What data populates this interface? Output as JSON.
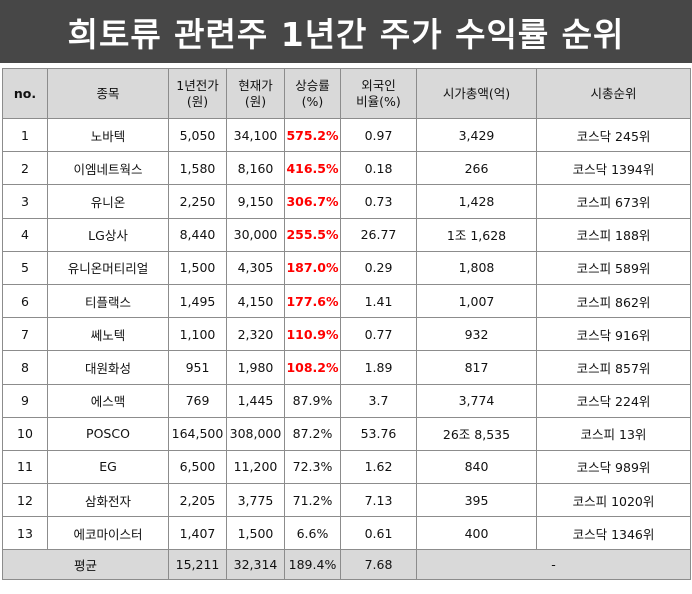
{
  "title": "희토류 관련주 1년간 주가 수익률 순위",
  "headers": {
    "no": "no.",
    "name": "종목",
    "price_1y_line1": "1년전가",
    "price_1y_line2": "(원)",
    "price_now_line1": "현재가",
    "price_now_line2": "(원)",
    "rise_line1": "상승률",
    "rise_line2": "(%)",
    "foreign_line1": "외국인",
    "foreign_line2": "비율(%)",
    "mktcap": "시가총액(억)",
    "rank": "시총순위"
  },
  "highlight_color": "#ff0000",
  "rows": [
    {
      "no": "1",
      "name": "노바텍",
      "p1y": "5,050",
      "pnow": "34,100",
      "rise": "575.2%",
      "foreign": "0.97",
      "mktcap": "3,429",
      "rank": "코스닥  245위",
      "hot": true
    },
    {
      "no": "2",
      "name": "이엠네트웍스",
      "p1y": "1,580",
      "pnow": "8,160",
      "rise": "416.5%",
      "foreign": "0.18",
      "mktcap": "266",
      "rank": "코스닥  1394위",
      "hot": true
    },
    {
      "no": "3",
      "name": "유니온",
      "p1y": "2,250",
      "pnow": "9,150",
      "rise": "306.7%",
      "foreign": "0.73",
      "mktcap": "1,428",
      "rank": "코스피  673위",
      "hot": true
    },
    {
      "no": "4",
      "name": "LG상사",
      "p1y": "8,440",
      "pnow": "30,000",
      "rise": "255.5%",
      "foreign": "26.77",
      "mktcap": "1조  1,628",
      "rank": "코스피  188위",
      "hot": true
    },
    {
      "no": "5",
      "name": "유니온머티리얼",
      "p1y": "1,500",
      "pnow": "4,305",
      "rise": "187.0%",
      "foreign": "0.29",
      "mktcap": "1,808",
      "rank": "코스피  589위",
      "hot": true
    },
    {
      "no": "6",
      "name": "티플랙스",
      "p1y": "1,495",
      "pnow": "4,150",
      "rise": "177.6%",
      "foreign": "1.41",
      "mktcap": "1,007",
      "rank": "코스피  862위",
      "hot": true
    },
    {
      "no": "7",
      "name": "쎄노텍",
      "p1y": "1,100",
      "pnow": "2,320",
      "rise": "110.9%",
      "foreign": "0.77",
      "mktcap": "932",
      "rank": "코스닥  916위",
      "hot": true
    },
    {
      "no": "8",
      "name": "대원화성",
      "p1y": "951",
      "pnow": "1,980",
      "rise": "108.2%",
      "foreign": "1.89",
      "mktcap": "817",
      "rank": "코스피  857위",
      "hot": true
    },
    {
      "no": "9",
      "name": "에스맥",
      "p1y": "769",
      "pnow": "1,445",
      "rise": "87.9%",
      "foreign": "3.7",
      "mktcap": "3,774",
      "rank": "코스닥  224위",
      "hot": false
    },
    {
      "no": "10",
      "name": "POSCO",
      "p1y": "164,500",
      "pnow": "308,000",
      "rise": "87.2%",
      "foreign": "53.76",
      "mktcap": "26조  8,535",
      "rank": "코스피  13위",
      "hot": false
    },
    {
      "no": "11",
      "name": "EG",
      "p1y": "6,500",
      "pnow": "11,200",
      "rise": "72.3%",
      "foreign": "1.62",
      "mktcap": "840",
      "rank": "코스닥  989위",
      "hot": false
    },
    {
      "no": "12",
      "name": "삼화전자",
      "p1y": "2,205",
      "pnow": "3,775",
      "rise": "71.2%",
      "foreign": "7.13",
      "mktcap": "395",
      "rank": "코스피  1020위",
      "hot": false
    },
    {
      "no": "13",
      "name": "에코마이스터",
      "p1y": "1,407",
      "pnow": "1,500",
      "rise": "6.6%",
      "foreign": "0.61",
      "mktcap": "400",
      "rank": "코스닥  1346위",
      "hot": false
    }
  ],
  "footer": {
    "label": "평균",
    "p1y": "15,211",
    "pnow": "32,314",
    "rise": "189.4%",
    "foreign": "7.68",
    "rest": "-"
  }
}
